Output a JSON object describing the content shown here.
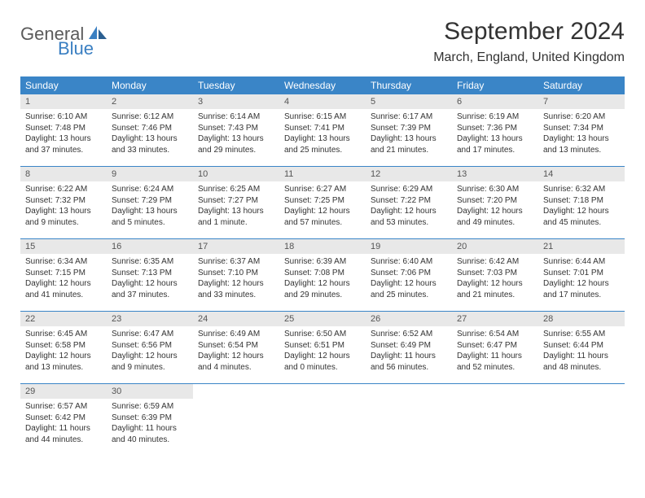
{
  "logo": {
    "text_general": "General",
    "text_blue": "Blue",
    "shape_color": "#3a7fc2"
  },
  "colors": {
    "header_bg": "#3a85c7",
    "header_text": "#ffffff",
    "daynum_bg": "#e8e8e8",
    "daynum_text": "#555555",
    "body_text": "#333333",
    "rule": "#3a85c7"
  },
  "title": "September 2024",
  "subtitle": "March, England, United Kingdom",
  "day_names": [
    "Sunday",
    "Monday",
    "Tuesday",
    "Wednesday",
    "Thursday",
    "Friday",
    "Saturday"
  ],
  "weeks": [
    [
      {
        "n": "1",
        "sunrise": "Sunrise: 6:10 AM",
        "sunset": "Sunset: 7:48 PM",
        "daylight": "Daylight: 13 hours and 37 minutes."
      },
      {
        "n": "2",
        "sunrise": "Sunrise: 6:12 AM",
        "sunset": "Sunset: 7:46 PM",
        "daylight": "Daylight: 13 hours and 33 minutes."
      },
      {
        "n": "3",
        "sunrise": "Sunrise: 6:14 AM",
        "sunset": "Sunset: 7:43 PM",
        "daylight": "Daylight: 13 hours and 29 minutes."
      },
      {
        "n": "4",
        "sunrise": "Sunrise: 6:15 AM",
        "sunset": "Sunset: 7:41 PM",
        "daylight": "Daylight: 13 hours and 25 minutes."
      },
      {
        "n": "5",
        "sunrise": "Sunrise: 6:17 AM",
        "sunset": "Sunset: 7:39 PM",
        "daylight": "Daylight: 13 hours and 21 minutes."
      },
      {
        "n": "6",
        "sunrise": "Sunrise: 6:19 AM",
        "sunset": "Sunset: 7:36 PM",
        "daylight": "Daylight: 13 hours and 17 minutes."
      },
      {
        "n": "7",
        "sunrise": "Sunrise: 6:20 AM",
        "sunset": "Sunset: 7:34 PM",
        "daylight": "Daylight: 13 hours and 13 minutes."
      }
    ],
    [
      {
        "n": "8",
        "sunrise": "Sunrise: 6:22 AM",
        "sunset": "Sunset: 7:32 PM",
        "daylight": "Daylight: 13 hours and 9 minutes."
      },
      {
        "n": "9",
        "sunrise": "Sunrise: 6:24 AM",
        "sunset": "Sunset: 7:29 PM",
        "daylight": "Daylight: 13 hours and 5 minutes."
      },
      {
        "n": "10",
        "sunrise": "Sunrise: 6:25 AM",
        "sunset": "Sunset: 7:27 PM",
        "daylight": "Daylight: 13 hours and 1 minute."
      },
      {
        "n": "11",
        "sunrise": "Sunrise: 6:27 AM",
        "sunset": "Sunset: 7:25 PM",
        "daylight": "Daylight: 12 hours and 57 minutes."
      },
      {
        "n": "12",
        "sunrise": "Sunrise: 6:29 AM",
        "sunset": "Sunset: 7:22 PM",
        "daylight": "Daylight: 12 hours and 53 minutes."
      },
      {
        "n": "13",
        "sunrise": "Sunrise: 6:30 AM",
        "sunset": "Sunset: 7:20 PM",
        "daylight": "Daylight: 12 hours and 49 minutes."
      },
      {
        "n": "14",
        "sunrise": "Sunrise: 6:32 AM",
        "sunset": "Sunset: 7:18 PM",
        "daylight": "Daylight: 12 hours and 45 minutes."
      }
    ],
    [
      {
        "n": "15",
        "sunrise": "Sunrise: 6:34 AM",
        "sunset": "Sunset: 7:15 PM",
        "daylight": "Daylight: 12 hours and 41 minutes."
      },
      {
        "n": "16",
        "sunrise": "Sunrise: 6:35 AM",
        "sunset": "Sunset: 7:13 PM",
        "daylight": "Daylight: 12 hours and 37 minutes."
      },
      {
        "n": "17",
        "sunrise": "Sunrise: 6:37 AM",
        "sunset": "Sunset: 7:10 PM",
        "daylight": "Daylight: 12 hours and 33 minutes."
      },
      {
        "n": "18",
        "sunrise": "Sunrise: 6:39 AM",
        "sunset": "Sunset: 7:08 PM",
        "daylight": "Daylight: 12 hours and 29 minutes."
      },
      {
        "n": "19",
        "sunrise": "Sunrise: 6:40 AM",
        "sunset": "Sunset: 7:06 PM",
        "daylight": "Daylight: 12 hours and 25 minutes."
      },
      {
        "n": "20",
        "sunrise": "Sunrise: 6:42 AM",
        "sunset": "Sunset: 7:03 PM",
        "daylight": "Daylight: 12 hours and 21 minutes."
      },
      {
        "n": "21",
        "sunrise": "Sunrise: 6:44 AM",
        "sunset": "Sunset: 7:01 PM",
        "daylight": "Daylight: 12 hours and 17 minutes."
      }
    ],
    [
      {
        "n": "22",
        "sunrise": "Sunrise: 6:45 AM",
        "sunset": "Sunset: 6:58 PM",
        "daylight": "Daylight: 12 hours and 13 minutes."
      },
      {
        "n": "23",
        "sunrise": "Sunrise: 6:47 AM",
        "sunset": "Sunset: 6:56 PM",
        "daylight": "Daylight: 12 hours and 9 minutes."
      },
      {
        "n": "24",
        "sunrise": "Sunrise: 6:49 AM",
        "sunset": "Sunset: 6:54 PM",
        "daylight": "Daylight: 12 hours and 4 minutes."
      },
      {
        "n": "25",
        "sunrise": "Sunrise: 6:50 AM",
        "sunset": "Sunset: 6:51 PM",
        "daylight": "Daylight: 12 hours and 0 minutes."
      },
      {
        "n": "26",
        "sunrise": "Sunrise: 6:52 AM",
        "sunset": "Sunset: 6:49 PM",
        "daylight": "Daylight: 11 hours and 56 minutes."
      },
      {
        "n": "27",
        "sunrise": "Sunrise: 6:54 AM",
        "sunset": "Sunset: 6:47 PM",
        "daylight": "Daylight: 11 hours and 52 minutes."
      },
      {
        "n": "28",
        "sunrise": "Sunrise: 6:55 AM",
        "sunset": "Sunset: 6:44 PM",
        "daylight": "Daylight: 11 hours and 48 minutes."
      }
    ],
    [
      {
        "n": "29",
        "sunrise": "Sunrise: 6:57 AM",
        "sunset": "Sunset: 6:42 PM",
        "daylight": "Daylight: 11 hours and 44 minutes."
      },
      {
        "n": "30",
        "sunrise": "Sunrise: 6:59 AM",
        "sunset": "Sunset: 6:39 PM",
        "daylight": "Daylight: 11 hours and 40 minutes."
      },
      {
        "empty": true
      },
      {
        "empty": true
      },
      {
        "empty": true
      },
      {
        "empty": true
      },
      {
        "empty": true
      }
    ]
  ]
}
